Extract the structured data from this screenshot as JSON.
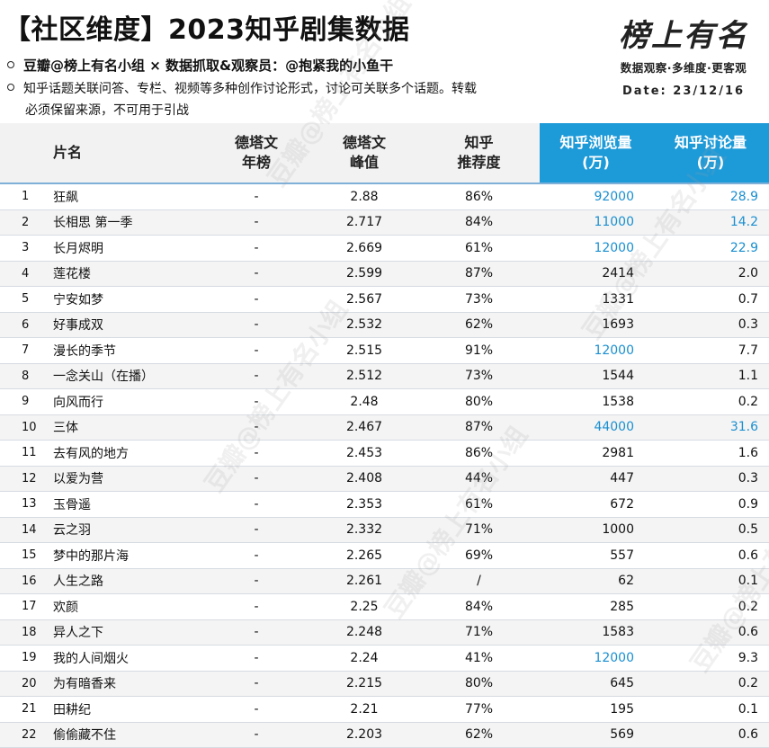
{
  "header": {
    "title": "【社区维度】2023知乎剧集数据",
    "line1": "豆瓣@榜上有名小组 × 数据抓取&观察员：@抱紧我的小鱼干",
    "line2": "知乎话题关联问答、专栏、视频等多种创作讨论形式，讨论可关联多个话题。转载",
    "line3": "必须保留来源，不可用于引战"
  },
  "logo": {
    "script": "榜上有名",
    "tagline": "数据观察·多维度·更客观",
    "date": "Date: 23/12/16"
  },
  "watermark": "豆瓣@榜上有名小组",
  "columns": {
    "name": "片名",
    "year_line1": "德塔文",
    "year_line2": "年榜",
    "peak_line1": "德塔文",
    "peak_line2": "峰值",
    "rec_line1": "知乎",
    "rec_line2": "推荐度",
    "views_line1": "知乎浏览量",
    "views_line2": "(万)",
    "disc_line1": "知乎讨论量",
    "disc_line2": "(万)"
  },
  "colors": {
    "header_blue": "#1d9ad8",
    "highlight_text": "#1a8fd0"
  },
  "rows": [
    {
      "rank": "1",
      "name": "狂飙",
      "year": "-",
      "peak": "2.88",
      "rec": "86%",
      "views": "92000",
      "disc": "28.9",
      "hl": true
    },
    {
      "rank": "2",
      "name": "长相思 第一季",
      "year": "-",
      "peak": "2.717",
      "rec": "84%",
      "views": "11000",
      "disc": "14.2",
      "hl": true
    },
    {
      "rank": "3",
      "name": "长月烬明",
      "year": "-",
      "peak": "2.669",
      "rec": "61%",
      "views": "12000",
      "disc": "22.9",
      "hl": true
    },
    {
      "rank": "4",
      "name": "莲花楼",
      "year": "-",
      "peak": "2.599",
      "rec": "87%",
      "views": "2414",
      "disc": "2.0",
      "hl": false
    },
    {
      "rank": "5",
      "name": "宁安如梦",
      "year": "-",
      "peak": "2.567",
      "rec": "73%",
      "views": "1331",
      "disc": "0.7",
      "hl": false
    },
    {
      "rank": "6",
      "name": "好事成双",
      "year": "-",
      "peak": "2.532",
      "rec": "62%",
      "views": "1693",
      "disc": "0.3",
      "hl": false
    },
    {
      "rank": "7",
      "name": "漫长的季节",
      "year": "-",
      "peak": "2.515",
      "rec": "91%",
      "views": "12000",
      "disc": "7.7",
      "hl": true,
      "views_only": true
    },
    {
      "rank": "8",
      "name": "一念关山（在播）",
      "year": "-",
      "peak": "2.512",
      "rec": "73%",
      "views": "1544",
      "disc": "1.1",
      "hl": false
    },
    {
      "rank": "9",
      "name": "向风而行",
      "year": "-",
      "peak": "2.48",
      "rec": "80%",
      "views": "1538",
      "disc": "0.2",
      "hl": false
    },
    {
      "rank": "10",
      "name": "三体",
      "year": "-",
      "peak": "2.467",
      "rec": "87%",
      "views": "44000",
      "disc": "31.6",
      "hl": true
    },
    {
      "rank": "11",
      "name": "去有风的地方",
      "year": "-",
      "peak": "2.453",
      "rec": "86%",
      "views": "2981",
      "disc": "1.6",
      "hl": false
    },
    {
      "rank": "12",
      "name": "以爱为营",
      "year": "-",
      "peak": "2.408",
      "rec": "44%",
      "views": "447",
      "disc": "0.3",
      "hl": false
    },
    {
      "rank": "13",
      "name": "玉骨遥",
      "year": "-",
      "peak": "2.353",
      "rec": "61%",
      "views": "672",
      "disc": "0.9",
      "hl": false
    },
    {
      "rank": "14",
      "name": "云之羽",
      "year": "-",
      "peak": "2.332",
      "rec": "71%",
      "views": "1000",
      "disc": "0.5",
      "hl": false
    },
    {
      "rank": "15",
      "name": "梦中的那片海",
      "year": "-",
      "peak": "2.265",
      "rec": "69%",
      "views": "557",
      "disc": "0.6",
      "hl": false
    },
    {
      "rank": "16",
      "name": "人生之路",
      "year": "-",
      "peak": "2.261",
      "rec": "/",
      "views": "62",
      "disc": "0.1",
      "hl": false
    },
    {
      "rank": "17",
      "name": "欢颜",
      "year": "-",
      "peak": "2.25",
      "rec": "84%",
      "views": "285",
      "disc": "0.2",
      "hl": false
    },
    {
      "rank": "18",
      "name": "异人之下",
      "year": "-",
      "peak": "2.248",
      "rec": "71%",
      "views": "1583",
      "disc": "0.6",
      "hl": false
    },
    {
      "rank": "19",
      "name": "我的人间烟火",
      "year": "-",
      "peak": "2.24",
      "rec": "41%",
      "views": "12000",
      "disc": "9.3",
      "hl": true,
      "views_only": true
    },
    {
      "rank": "20",
      "name": "为有暗香来",
      "year": "-",
      "peak": "2.215",
      "rec": "80%",
      "views": "645",
      "disc": "0.2",
      "hl": false
    },
    {
      "rank": "21",
      "name": "田耕纪",
      "year": "-",
      "peak": "2.21",
      "rec": "77%",
      "views": "195",
      "disc": "0.1",
      "hl": false
    },
    {
      "rank": "22",
      "name": "偷偷藏不住",
      "year": "-",
      "peak": "2.203",
      "rec": "62%",
      "views": "569",
      "disc": "0.6",
      "hl": false
    }
  ]
}
